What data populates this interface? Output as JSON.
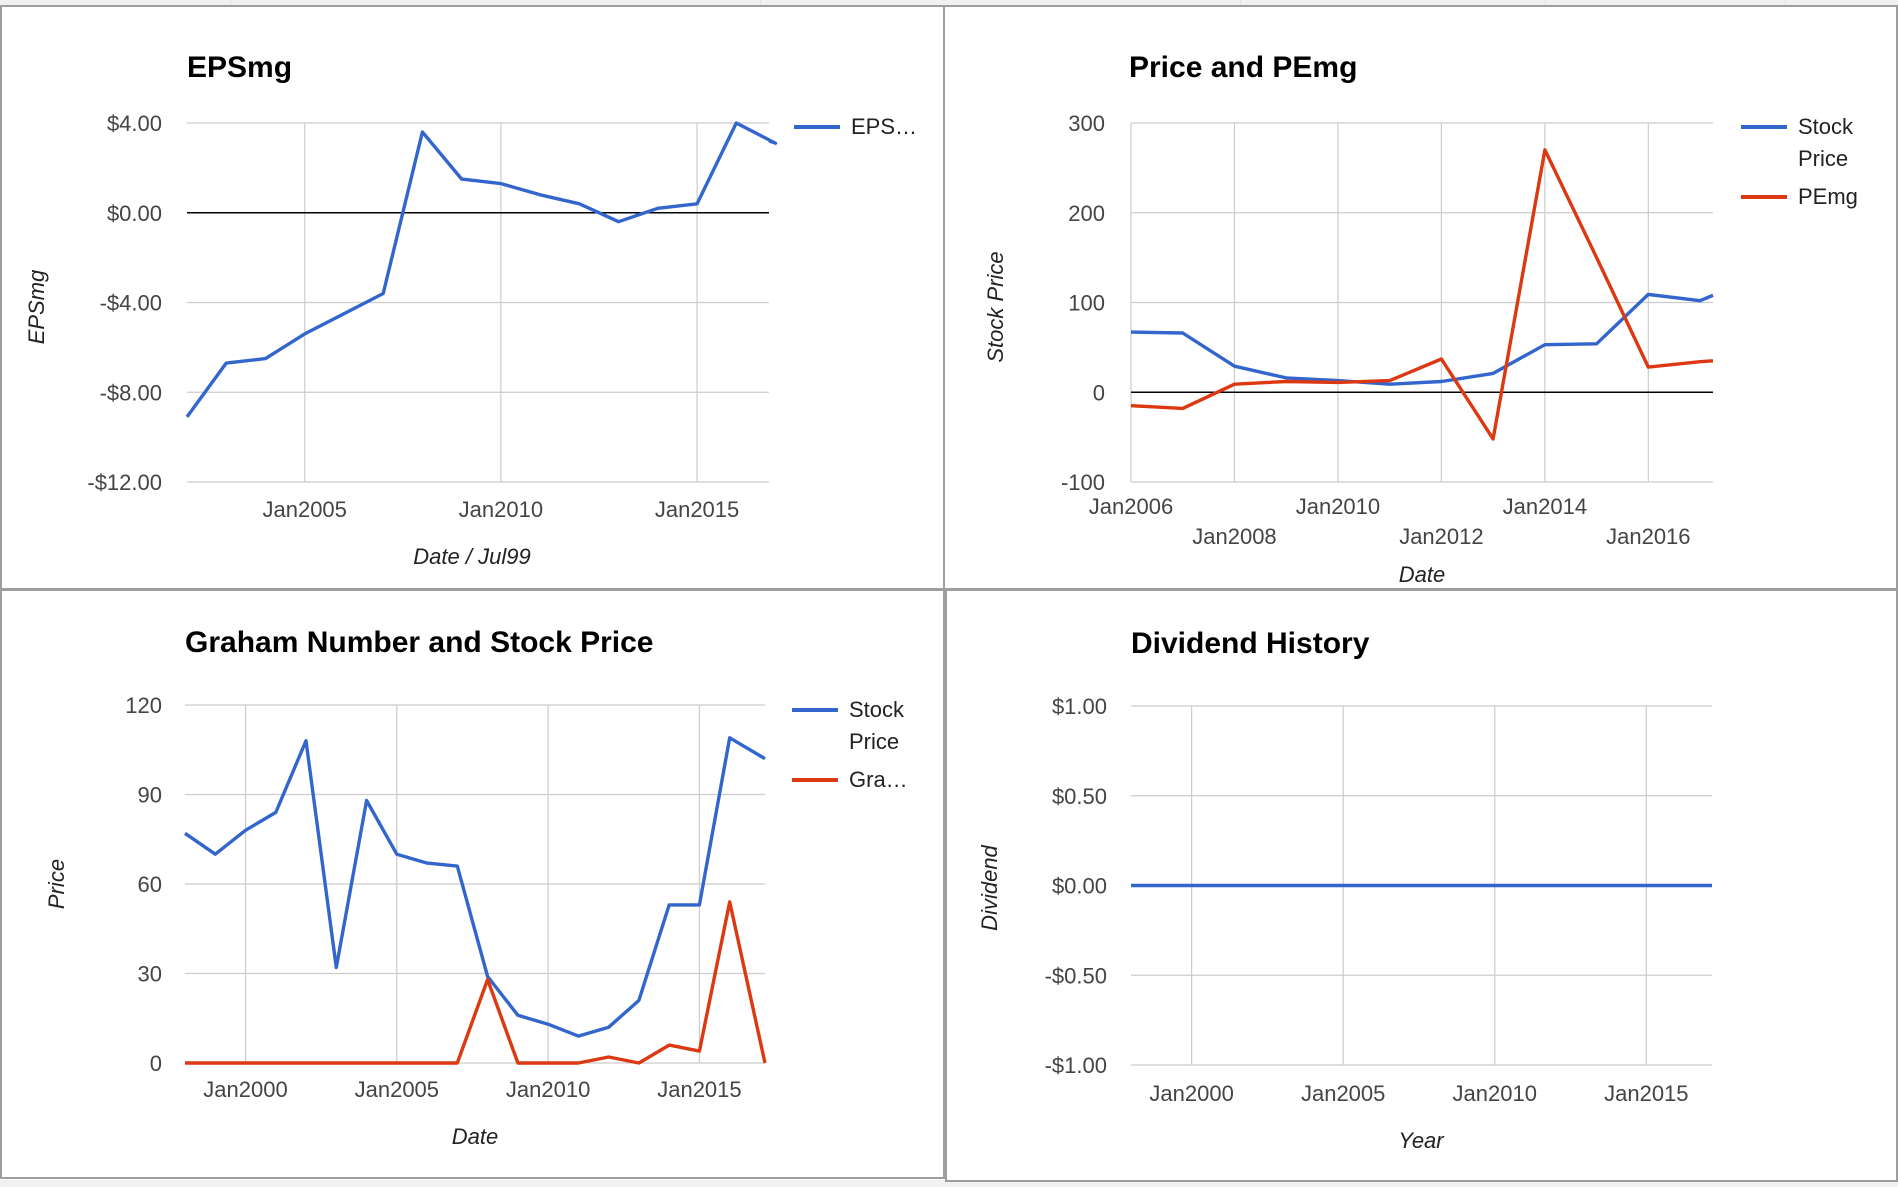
{
  "colors": {
    "blue": "#3366cc",
    "red": "#dc3912",
    "grid": "#cccccc",
    "zero_line": "#000000"
  },
  "chart_data": [
    {
      "id": "eps",
      "type": "line",
      "title": "EPSmg",
      "xlabel": "Date / Jul99",
      "ylabel": "EPSmg",
      "x_type": "date",
      "xlim": [
        "2002-01",
        "2016-11"
      ],
      "x_ticks": [
        "2005-01",
        "2010-01",
        "2015-01"
      ],
      "x_tick_labels": [
        "Jan2005",
        "Jan2010",
        "Jan2015"
      ],
      "ylim": [
        -12,
        4
      ],
      "y_ticks": [
        4,
        0,
        -4,
        -8,
        -12
      ],
      "y_tick_labels": [
        "$4.00",
        "$0.00",
        "-$4.00",
        "-$8.00",
        "-$12.00"
      ],
      "grid": true,
      "legend": "right",
      "series": [
        {
          "name": "EPS…",
          "color": "#3366cc",
          "x": [
            "2002-01",
            "2003-01",
            "2004-01",
            "2005-01",
            "2006-01",
            "2007-01",
            "2008-01",
            "2009-01",
            "2010-01",
            "2011-01",
            "2012-01",
            "2013-01",
            "2014-01",
            "2015-01",
            "2016-01",
            "2017-01",
            "2016-11"
          ],
          "values": [
            -9.1,
            -6.7,
            -6.5,
            -5.4,
            -4.5,
            -3.6,
            3.6,
            1.5,
            1.3,
            0.8,
            0.4,
            -0.4,
            0.2,
            0.4,
            4.0,
            3.1,
            3.2
          ]
        }
      ]
    },
    {
      "id": "price_pe",
      "type": "line",
      "title": "Price and PEmg",
      "xlabel": "Date",
      "ylabel": "Stock Price",
      "x_type": "date",
      "xlim": [
        "2006-01",
        "2017-04"
      ],
      "x_ticks": [
        "2006-01",
        "2008-01",
        "2010-01",
        "2012-01",
        "2014-01",
        "2016-01"
      ],
      "x_tick_labels": [
        "Jan2006",
        "Jan2008",
        "Jan2010",
        "Jan2012",
        "Jan2014",
        "Jan2016"
      ],
      "ylim": [
        -100,
        300
      ],
      "y_ticks": [
        300,
        200,
        100,
        0,
        -100
      ],
      "y_tick_labels": [
        "300",
        "200",
        "100",
        "0",
        "-100"
      ],
      "grid": true,
      "legend": "right",
      "series": [
        {
          "name": "Stock Price",
          "color": "#3366cc",
          "x": [
            "2006-01",
            "2007-01",
            "2008-01",
            "2009-01",
            "2010-01",
            "2011-01",
            "2012-01",
            "2013-01",
            "2014-01",
            "2015-01",
            "2016-01",
            "2017-01",
            "2017-04"
          ],
          "values": [
            67,
            66,
            29,
            16,
            13,
            9,
            12,
            21,
            53,
            54,
            109,
            102,
            108
          ]
        },
        {
          "name": "PEmg",
          "color": "#dc3912",
          "x": [
            "2006-01",
            "2007-01",
            "2008-01",
            "2009-01",
            "2010-01",
            "2011-01",
            "2012-01",
            "2013-01",
            "2014-01",
            "2015-01",
            "2016-01",
            "2017-01",
            "2017-04"
          ],
          "values": [
            -15,
            -18,
            9,
            12,
            11,
            13,
            37,
            -52,
            270,
            150,
            28,
            34,
            35
          ]
        }
      ]
    },
    {
      "id": "graham",
      "type": "line",
      "title": "Graham Number and Stock Price",
      "xlabel": "Date",
      "ylabel": "Price",
      "x_type": "date",
      "xlim": [
        "1998-01",
        "2017-03"
      ],
      "x_ticks": [
        "2000-01",
        "2005-01",
        "2010-01",
        "2015-01"
      ],
      "x_tick_labels": [
        "Jan2000",
        "Jan2005",
        "Jan2010",
        "Jan2015"
      ],
      "ylim": [
        0,
        120
      ],
      "y_ticks": [
        120,
        90,
        60,
        30,
        0
      ],
      "y_tick_labels": [
        "120",
        "90",
        "60",
        "30",
        "0"
      ],
      "grid": true,
      "legend": "right",
      "series": [
        {
          "name": "Stock Price",
          "color": "#3366cc",
          "x": [
            "1998-01",
            "1999-01",
            "2000-01",
            "2001-01",
            "2002-01",
            "2003-01",
            "2004-01",
            "2005-01",
            "2006-01",
            "2007-01",
            "2008-01",
            "2009-01",
            "2010-01",
            "2011-01",
            "2012-01",
            "2013-01",
            "2014-01",
            "2015-01",
            "2016-01",
            "2017-03"
          ],
          "values": [
            77,
            70,
            78,
            84,
            108,
            32,
            88,
            70,
            67,
            66,
            29,
            16,
            13,
            9,
            12,
            21,
            53,
            53,
            109,
            102
          ]
        },
        {
          "name": "Gra…",
          "color": "#dc3912",
          "x": [
            "1998-01",
            "1999-01",
            "2000-01",
            "2001-01",
            "2002-01",
            "2003-01",
            "2004-01",
            "2005-01",
            "2006-01",
            "2007-01",
            "2008-01",
            "2009-01",
            "2010-01",
            "2011-01",
            "2012-01",
            "2013-01",
            "2014-01",
            "2015-01",
            "2016-01",
            "2017-03"
          ],
          "values": [
            0,
            0,
            0,
            0,
            0,
            0,
            0,
            0,
            0,
            0,
            28,
            0,
            0,
            0,
            2,
            0,
            6,
            4,
            54,
            0
          ]
        }
      ]
    },
    {
      "id": "dividend",
      "type": "line",
      "title": "Dividend History",
      "xlabel": "Year",
      "ylabel": "Dividend",
      "x_type": "date",
      "xlim": [
        "1998-01",
        "2017-03"
      ],
      "x_ticks": [
        "2000-01",
        "2005-01",
        "2010-01",
        "2015-01"
      ],
      "x_tick_labels": [
        "Jan2000",
        "Jan2005",
        "Jan2010",
        "Jan2015"
      ],
      "ylim": [
        -1,
        1
      ],
      "y_ticks": [
        1,
        0.5,
        0,
        -0.5,
        -1
      ],
      "y_tick_labels": [
        "$1.00",
        "$0.50",
        "$0.00",
        "-$0.50",
        "-$1.00"
      ],
      "grid": true,
      "legend": "none",
      "series": [
        {
          "color": "#3366cc",
          "x": [
            "1998-01",
            "2017-03"
          ],
          "values": [
            0,
            0
          ]
        }
      ]
    }
  ]
}
